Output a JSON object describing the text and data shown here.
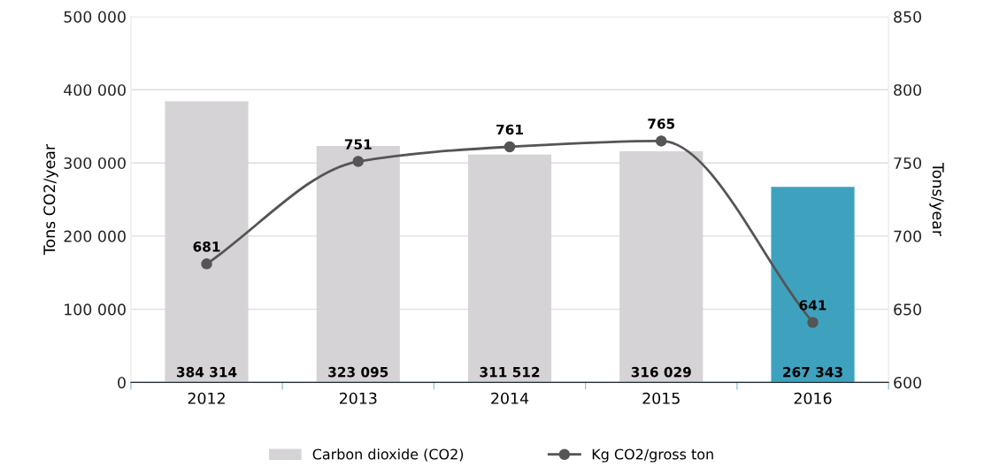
{
  "chart_data": {
    "type": "bar",
    "categories": [
      "2012",
      "2013",
      "2014",
      "2015",
      "2016"
    ],
    "series": [
      {
        "name": "Carbon dioxide (CO2)",
        "color": "#d5d3d6",
        "colors": [
          "#d5d3d6",
          "#d5d3d6",
          "#d5d3d6",
          "#d5d3d6",
          "#3ea2bf"
        ],
        "values": [
          384314,
          323095,
          311512,
          316029,
          267343
        ],
        "value_labels": [
          "384 314",
          "323 095",
          "311 512",
          "316 029",
          "267 343"
        ]
      },
      {
        "name": "Kg CO2/gross ton",
        "type": "line",
        "axis": "y2",
        "color": "#555555",
        "marker": "circle",
        "values": [
          681,
          751,
          761,
          765,
          641
        ]
      }
    ],
    "ylabel": "Tons CO2/year",
    "y2label": "Tons/year",
    "ylim": [
      0,
      500000
    ],
    "yticks": [
      {
        "value": 0,
        "label": "0"
      },
      {
        "value": 100000,
        "label": "100 000"
      },
      {
        "value": 200000,
        "label": "200 000"
      },
      {
        "value": 300000,
        "label": "300 000"
      },
      {
        "value": 400000,
        "label": "400 000"
      },
      {
        "value": 500000,
        "label": "500 000"
      }
    ],
    "y2lim": [
      600,
      850
    ],
    "y2ticks": [
      600,
      650,
      700,
      750,
      800,
      850
    ],
    "grid": "y",
    "legend": "bottom",
    "data_labels": true
  }
}
